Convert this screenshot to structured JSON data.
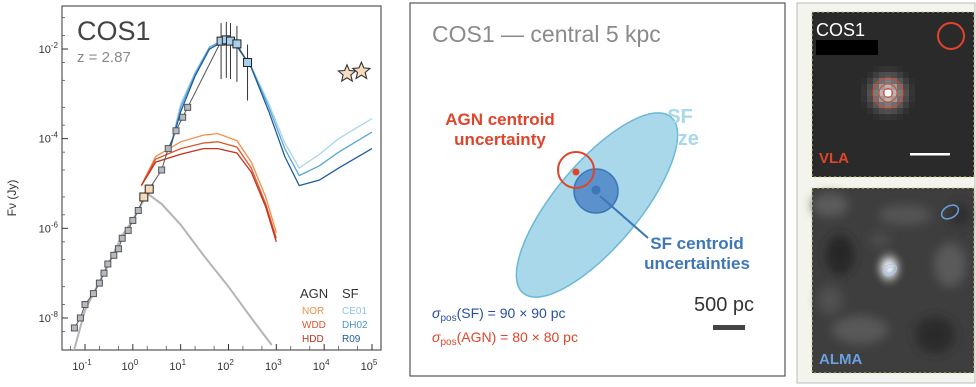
{
  "panel_a": {
    "title": "COS1",
    "redshift": "z = 2.87",
    "ylabel": "Fν (Jy)",
    "y_ticks": [
      {
        "base": "10",
        "exp": "-2"
      },
      {
        "base": "10",
        "exp": "-4"
      },
      {
        "base": "10",
        "exp": "-6"
      },
      {
        "base": "10",
        "exp": "-8"
      }
    ],
    "x_ticks": [
      {
        "base": "10",
        "exp": "-1"
      },
      {
        "base": "10",
        "exp": "0"
      },
      {
        "base": "10",
        "exp": "1"
      },
      {
        "base": "10",
        "exp": "2"
      },
      {
        "base": "10",
        "exp": "3"
      },
      {
        "base": "10",
        "exp": "4"
      },
      {
        "base": "10",
        "exp": "5"
      }
    ],
    "legend": {
      "agn_header": "AGN",
      "sf_header": "SF",
      "agn_models": [
        {
          "name": "NOR",
          "color": "#f28e48"
        },
        {
          "name": "WDD",
          "color": "#e0542a"
        },
        {
          "name": "HDD",
          "color": "#c2321d"
        }
      ],
      "sf_models": [
        {
          "name": "CE01",
          "color": "#a9d6ec"
        },
        {
          "name": "DH02",
          "color": "#5aa6d4"
        },
        {
          "name": "R09",
          "color": "#1f5c9e"
        }
      ]
    }
  },
  "chart_data": {
    "type": "scatter",
    "xscale": "log",
    "yscale": "log",
    "xlim": [
      0.05,
      200000
    ],
    "ylim": [
      1e-09,
      0.05
    ],
    "series": [
      {
        "name": "CE01",
        "points": [
          [
            6,
            6e-05
          ],
          [
            10,
            0.0006
          ],
          [
            20,
            0.003
          ],
          [
            40,
            0.011
          ],
          [
            80,
            0.016
          ],
          [
            150,
            0.012
          ],
          [
            300,
            0.004
          ],
          [
            700,
            0.0006
          ],
          [
            1500,
            8e-05
          ],
          [
            3000,
            2.2e-05
          ],
          [
            8000,
            4.5e-05
          ],
          [
            20000,
            0.0001
          ],
          [
            100000,
            0.00028
          ]
        ]
      },
      {
        "name": "DH02",
        "points": [
          [
            6,
            6e-05
          ],
          [
            10,
            0.0005
          ],
          [
            20,
            0.0028
          ],
          [
            40,
            0.011
          ],
          [
            80,
            0.016
          ],
          [
            150,
            0.012
          ],
          [
            300,
            0.004
          ],
          [
            700,
            0.0005
          ],
          [
            1500,
            6e-05
          ],
          [
            3000,
            1.5e-05
          ],
          [
            8000,
            2.5e-05
          ],
          [
            20000,
            5e-05
          ],
          [
            100000,
            0.00014
          ]
        ]
      },
      {
        "name": "R09",
        "points": [
          [
            6,
            6e-05
          ],
          [
            10,
            0.0004
          ],
          [
            20,
            0.0025
          ],
          [
            40,
            0.01
          ],
          [
            80,
            0.015
          ],
          [
            150,
            0.0115
          ],
          [
            300,
            0.0038
          ],
          [
            700,
            0.0004
          ],
          [
            1500,
            4e-05
          ],
          [
            3000,
            9e-06
          ],
          [
            8000,
            1.2e-05
          ],
          [
            20000,
            2.2e-05
          ],
          [
            100000,
            6e-05
          ]
        ]
      },
      {
        "name": "NOR",
        "points": [
          [
            1.5,
            9e-06
          ],
          [
            3,
            4e-05
          ],
          [
            10,
            8.5e-05
          ],
          [
            30,
            0.00012
          ],
          [
            60,
            0.00013
          ],
          [
            150,
            9e-05
          ],
          [
            300,
            3e-05
          ],
          [
            600,
            5e-06
          ],
          [
            1000,
            8e-07
          ]
        ]
      },
      {
        "name": "WDD",
        "points": [
          [
            1.5,
            9e-06
          ],
          [
            3,
            3.5e-05
          ],
          [
            10,
            6e-05
          ],
          [
            30,
            8e-05
          ],
          [
            60,
            8.5e-05
          ],
          [
            150,
            6.5e-05
          ],
          [
            300,
            2.2e-05
          ],
          [
            600,
            3.5e-06
          ],
          [
            1000,
            6e-07
          ]
        ]
      },
      {
        "name": "HDD",
        "points": [
          [
            1.5,
            9e-06
          ],
          [
            3,
            3e-05
          ],
          [
            10,
            4.5e-05
          ],
          [
            30,
            6e-05
          ],
          [
            60,
            6e-05
          ],
          [
            150,
            4.8e-05
          ],
          [
            300,
            1.8e-05
          ],
          [
            600,
            3e-06
          ],
          [
            1000,
            5e-07
          ]
        ]
      },
      {
        "name": "",
        "points": [
          [
            0.05,
            1e-09
          ],
          [
            0.1,
            1.5e-08
          ],
          [
            0.3,
            1.5e-07
          ],
          [
            0.6,
            7e-07
          ],
          [
            1,
            1.5e-06
          ],
          [
            2,
            6e-06
          ],
          [
            4,
            3.5e-06
          ],
          [
            10,
            1.2e-06
          ],
          [
            30,
            2.5e-07
          ],
          [
            100,
            5e-08
          ],
          [
            300,
            1e-08
          ],
          [
            800,
            2.5e-09
          ]
        ]
      },
      {
        "name": "",
        "points": [
          [
            0.06,
            6e-09
          ],
          [
            0.08,
            1e-08
          ],
          [
            0.1,
            2e-08
          ],
          [
            0.15,
            3.5e-08
          ],
          [
            0.2,
            6e-08
          ],
          [
            0.25,
            1e-07
          ],
          [
            0.3,
            1.6e-07
          ],
          [
            0.4,
            2.5e-07
          ],
          [
            0.5,
            3.5e-07
          ],
          [
            0.6,
            6e-07
          ],
          [
            0.8,
            9e-07
          ],
          [
            1.0,
            1.5e-06
          ],
          [
            1.3,
            2.5e-06
          ],
          [
            1.7,
            5e-06
          ],
          [
            2.2,
            7.5e-06
          ],
          [
            4,
            2e-05
          ],
          [
            5.5,
            6e-05
          ],
          [
            8,
            0.00015
          ],
          [
            11,
            0.0003
          ],
          [
            14,
            0.0005
          ],
          [
            70,
            0.015
          ],
          [
            90,
            0.016
          ],
          [
            110,
            0.015
          ],
          [
            150,
            0.013
          ],
          [
            250,
            0.005
          ]
        ]
      },
      {
        "name": "",
        "points": [
          [
            30000,
            0.0028
          ],
          [
            60000,
            0.0032
          ]
        ]
      }
    ]
  },
  "panel_b": {
    "title": "COS1 — central 5 kpc",
    "sf_size_label_1": "SF",
    "sf_size_label_2": "size",
    "agn_label_1": "AGN centroid",
    "agn_label_2": "uncertainty",
    "sf_centroid_label_1": "SF centroid",
    "sf_centroid_label_2": "uncertainties",
    "scale_label": "500 pc",
    "sigma_sf_sub": "pos",
    "sigma_sf_rest": "(SF) = 90 × 90 pc",
    "sigma_agn_sub": "pos",
    "sigma_agn_rest": "(AGN) = 80 × 80 pc",
    "sigma_symbol": "σ",
    "colors": {
      "sf_fill": "#a8d8ea",
      "sf_dark": "#3d77b8",
      "agn": "#e0442a"
    }
  },
  "panel_c": {
    "title": "COS1",
    "vla_label": "VLA",
    "alma_label": "ALMA",
    "colors": {
      "vla": "#e0442a",
      "alma": "#6aa0e0"
    }
  }
}
